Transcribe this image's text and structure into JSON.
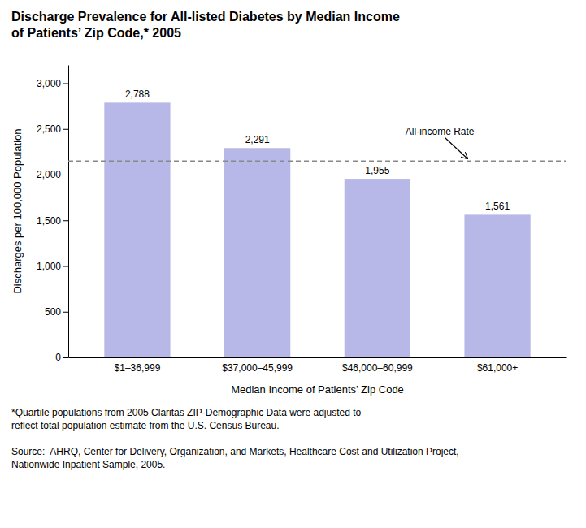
{
  "chart_data": {
    "type": "bar",
    "title": "Discharge Prevalence for All-listed Diabetes by Median Income\nof Patients’ Zip Code,* 2005",
    "categories": [
      "$1–36,999",
      "$37,000–45,999",
      "$46,000–60,999",
      "$61,000+"
    ],
    "values": [
      2788,
      2291,
      1955,
      1561
    ],
    "value_labels": [
      "2,788",
      "2,291",
      "1,955",
      "1,561"
    ],
    "data_labels": true,
    "color": "#b8b8e8",
    "xlabel": "Median Income of Patients’ Zip Code",
    "ylabel": "Discharges per 100,000 Population",
    "ylim": [
      0,
      3200
    ],
    "yticks": [
      0,
      500,
      {
        "value": 1000,
        "label": "1,000"
      },
      {
        "value": 1500,
        "label": "1,500"
      },
      {
        "value": 2000,
        "label": "2,000"
      },
      {
        "value": 2500,
        "label": "2,500"
      },
      {
        "value": 3000,
        "label": "3,000"
      }
    ],
    "grid": false,
    "reference_line": {
      "value": 2149,
      "label": "All-income Rate",
      "color": "#888888",
      "line_style": "dashed"
    },
    "footnote": "*Quartile populations from 2005 Claritas ZIP-Demographic Data were adjusted to\nreflect total population estimate from the U.S. Census Bureau.",
    "source": "Source:  AHRQ, Center for Delivery, Organization, and Markets, Healthcare Cost and Utilization Project,\nNationwide Inpatient Sample, 2005."
  }
}
